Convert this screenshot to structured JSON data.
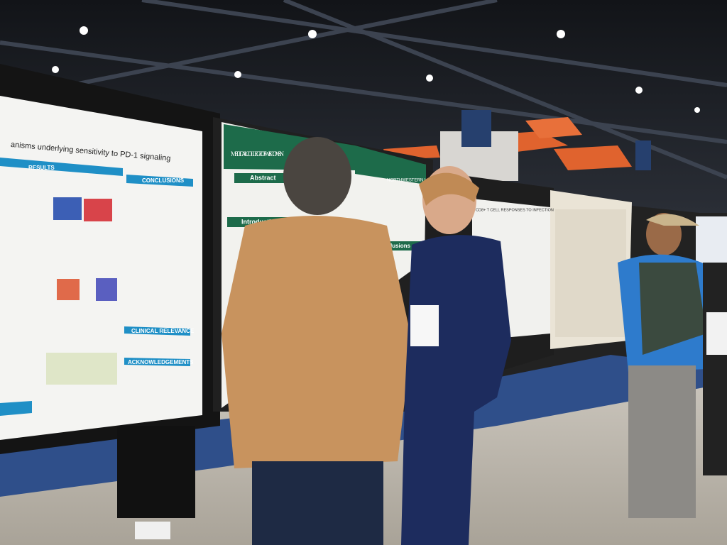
{
  "posters": [
    {
      "title": "anisms underlying sensitivity to PD-1 signaling",
      "sections": [
        "RESULTS",
        "CONCLUSIONS",
        "CLINICAL RELEVANCE",
        "ACKNOWLEDGEMENTS"
      ]
    },
    {
      "institution": "MEDICAL COLLEGE OF WISCONSIN",
      "partner": "NORTHWESTERN UNIVERSITY",
      "sections": [
        "Abstract",
        "Introduction",
        "Conclusions"
      ]
    },
    {
      "title": "CD8+ T CELL RESPONSES TO INFECTION"
    }
  ]
}
